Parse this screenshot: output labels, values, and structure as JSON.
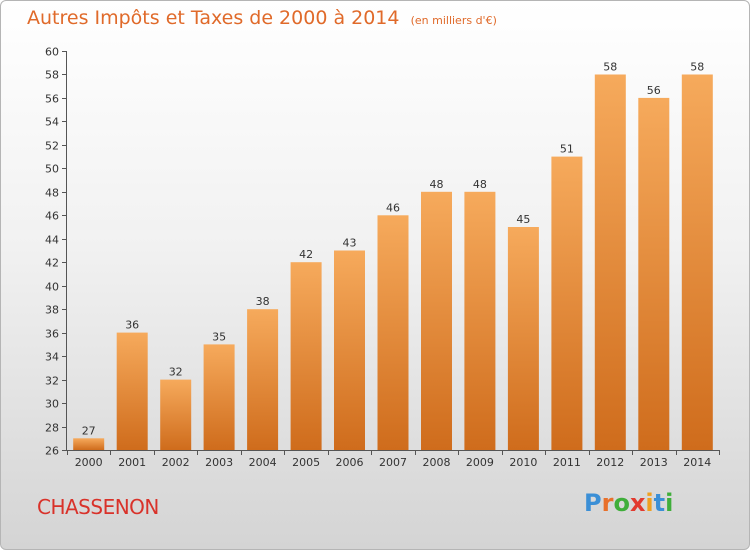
{
  "header": {
    "title": "Autres Impôts et Taxes de 2000 à 2014",
    "subtitle": "(en milliers d'€)"
  },
  "footer": {
    "commune": "CHASSENON",
    "logo_letters": [
      {
        "ch": "P",
        "color": "#3b8fd6"
      },
      {
        "ch": "r",
        "color": "#e8702a"
      },
      {
        "ch": "o",
        "color": "#3fae3a"
      },
      {
        "ch": "x",
        "color": "#e23a2f"
      },
      {
        "ch": "i",
        "color": "#f0a020"
      },
      {
        "ch": "t",
        "color": "#3b8fd6"
      },
      {
        "ch": "i",
        "color": "#3fae3a"
      }
    ]
  },
  "colors": {
    "bar_light": "#f6aa5c",
    "bar_dark": "#cf6c1c",
    "title": "#e06a2a",
    "commune": "#d9322a"
  },
  "chart_data": {
    "type": "bar",
    "title": "Autres Impôts et Taxes de 2000 à 2014",
    "subtitle": "(en milliers d'€)",
    "xlabel": "",
    "ylabel": "",
    "categories": [
      "2000",
      "2001",
      "2002",
      "2003",
      "2004",
      "2005",
      "2006",
      "2007",
      "2008",
      "2009",
      "2010",
      "2011",
      "2012",
      "2013",
      "2014"
    ],
    "values": [
      27,
      36,
      32,
      35,
      38,
      42,
      43,
      46,
      48,
      48,
      45,
      51,
      58,
      56,
      58
    ],
    "ylim": [
      26,
      60
    ],
    "yticks": [
      26,
      28,
      30,
      32,
      34,
      36,
      38,
      40,
      42,
      44,
      46,
      48,
      50,
      52,
      54,
      56,
      58,
      60
    ],
    "grid": false,
    "legend": "none"
  }
}
